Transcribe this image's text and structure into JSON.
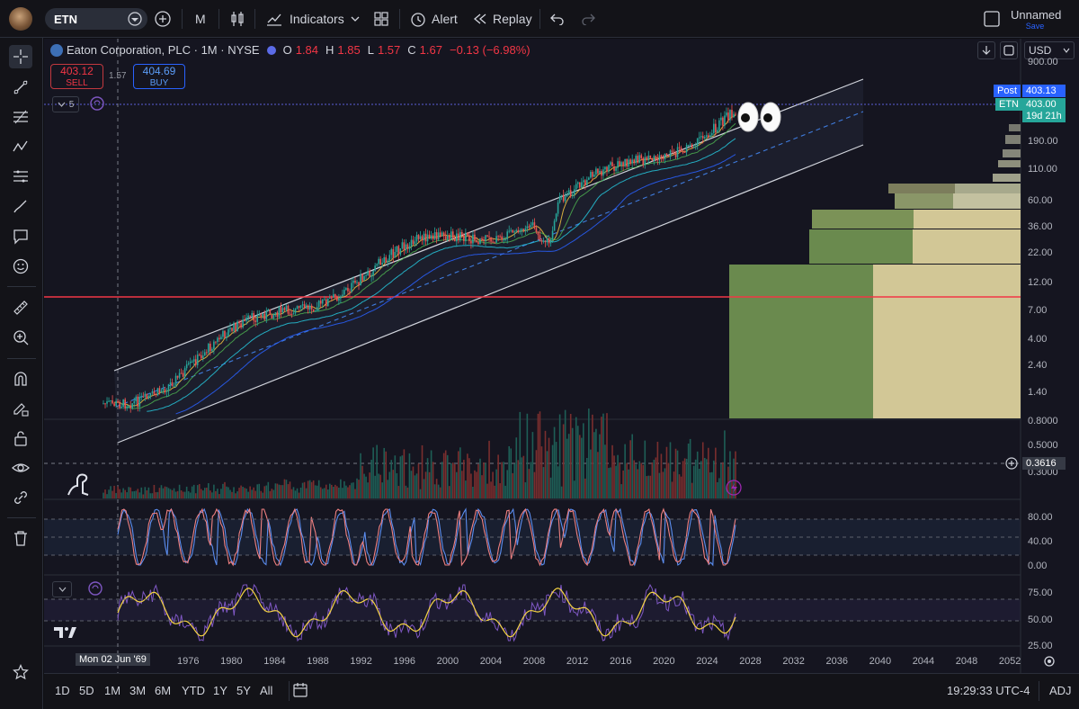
{
  "toolbar": {
    "symbol": "ETN",
    "interval": "M",
    "indicators_label": "Indicators",
    "alert_label": "Alert",
    "replay_label": "Replay",
    "layout_name": "Unnamed",
    "save_label": "Save"
  },
  "legend": {
    "title": "Eaton Corporation, PLC · 1M · NYSE",
    "o_label": "O",
    "o_value": "1.84",
    "h_label": "H",
    "h_value": "1.85",
    "l_label": "L",
    "l_value": "1.57",
    "c_label": "C",
    "c_value": "1.67",
    "change": "−0.13 (−6.98%)",
    "indicators_count": "5"
  },
  "trade": {
    "sell_price": "403.12",
    "sell_label": "SELL",
    "spread": "1.57",
    "buy_price": "404.69",
    "buy_label": "BUY"
  },
  "price_axis": {
    "currency": "USD",
    "labels": [
      "900.00",
      "190.00",
      "110.00",
      "60.00",
      "36.00",
      "22.00",
      "12.00",
      "7.00",
      "4.00",
      "2.40",
      "1.40",
      "0.8000",
      "0.5000",
      "0.3000"
    ],
    "post_label": "Post",
    "post_value": "403.13",
    "symbol_tag": "ETN",
    "last_value": "403.00",
    "countdown": "19d 21h",
    "crosshair_value": "0.3616",
    "rsi_labels": [
      "80.00",
      "40.00",
      "0.00"
    ],
    "osc_labels": [
      "75.00",
      "50.00",
      "25.00"
    ]
  },
  "time_axis": {
    "crosshair_date": "Mon 02 Jun '69",
    "labels": [
      "1976",
      "1980",
      "1984",
      "1988",
      "1992",
      "1996",
      "2000",
      "2004",
      "2008",
      "2012",
      "2016",
      "2020",
      "2024",
      "2028",
      "2032",
      "2036",
      "2040",
      "2044",
      "2048",
      "2052"
    ]
  },
  "ranges": [
    "1D",
    "5D",
    "1M",
    "3M",
    "6M",
    "YTD",
    "1Y",
    "5Y",
    "All"
  ],
  "status": {
    "time": "19:29:33 UTC-4",
    "adj": "ADJ"
  },
  "colors": {
    "up": "#26a69a",
    "down": "#ef5350",
    "accent": "#2962ff",
    "red_line": "#f23645"
  }
}
